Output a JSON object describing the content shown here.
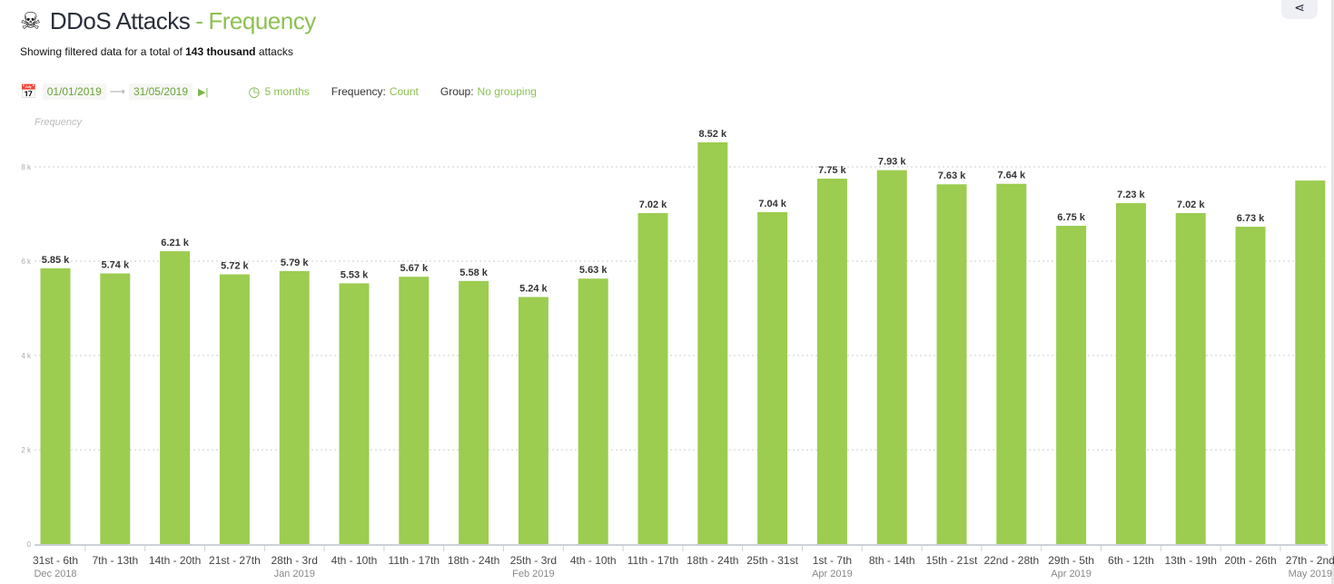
{
  "header": {
    "title": "DDoS Attacks",
    "separator": "-",
    "title_accent": "Frequency",
    "skull_icon": "skull-crossbones-icon",
    "subtitle_prefix": "Showing filtered data for a total of",
    "subtitle_bold": "143 thousand",
    "subtitle_suffix": "attacks"
  },
  "filters": {
    "date_from": "01/01/2019",
    "arrow": "⟶",
    "date_to": "31/05/2019",
    "duration": "5 months",
    "frequency_label": "Frequency:",
    "frequency_value": "Count",
    "group_label": "Group:",
    "group_value": "No grouping"
  },
  "colors": {
    "bar": "#9ccc50",
    "accent": "#8cc152"
  },
  "chart_data": {
    "type": "bar",
    "ylabel": "Frequency",
    "ylim": [
      0,
      8000
    ],
    "yticks": [
      {
        "v": 0,
        "label": "0"
      },
      {
        "v": 2000,
        "label": "2 k"
      },
      {
        "v": 4000,
        "label": "4 k"
      },
      {
        "v": 6000,
        "label": "6 k"
      },
      {
        "v": 8000,
        "label": "8 k"
      }
    ],
    "grid": true,
    "categories": [
      "31st - 6th",
      "7th - 13th",
      "14th - 20th",
      "21st - 27th",
      "28th - 3rd",
      "4th - 10th",
      "11th - 17th",
      "18th - 24th",
      "25th - 3rd",
      "4th - 10th",
      "11th - 17th",
      "18th - 24th",
      "25th - 31st",
      "1st - 7th",
      "8th - 14th",
      "15th - 21st",
      "22nd - 28th",
      "29th - 5th",
      "6th - 12th",
      "13th - 19th",
      "20th - 26th",
      "27th - 2nd"
    ],
    "month_labels": [
      {
        "index": 0,
        "label": "Dec 2018"
      },
      {
        "index": 4,
        "label": "Jan 2019"
      },
      {
        "index": 8,
        "label": "Feb 2019"
      },
      {
        "index": 13,
        "label": "Apr 2019"
      },
      {
        "index": 17,
        "label": "Apr 2019"
      },
      {
        "index": 21,
        "label": "May 2019"
      }
    ],
    "values": [
      5850,
      5740,
      6210,
      5720,
      5790,
      5530,
      5670,
      5580,
      5240,
      5630,
      7020,
      8520,
      7040,
      7750,
      7930,
      7630,
      7640,
      6750,
      7230,
      7020,
      6730,
      7710
    ],
    "data_labels": [
      "5.85 k",
      "5.74 k",
      "6.21 k",
      "5.72 k",
      "5.79 k",
      "5.53 k",
      "5.67 k",
      "5.58 k",
      "5.24 k",
      "5.63 k",
      "7.02 k",
      "8.52 k",
      "7.04 k",
      "7.75 k",
      "7.93 k",
      "7.63 k",
      "7.64 k",
      "6.75 k",
      "7.23 k",
      "7.02 k",
      "6.73 k",
      null
    ]
  }
}
